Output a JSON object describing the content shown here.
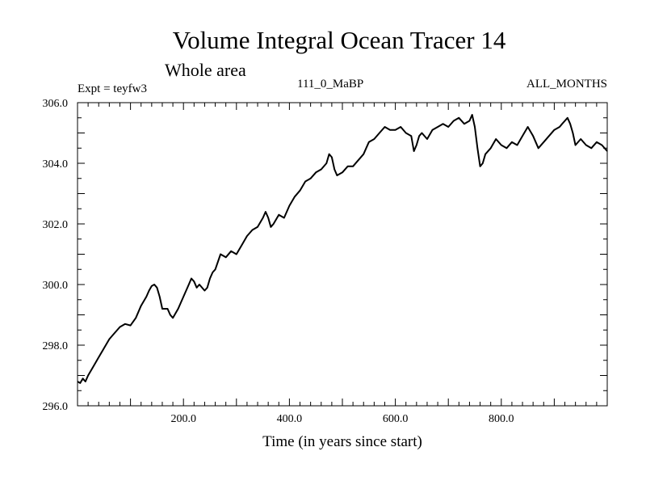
{
  "chart_data": {
    "type": "line",
    "title": "Volume Integral Ocean Tracer 14",
    "subtitle": "Whole area",
    "experiment": "Expt = teyfw3",
    "period": "111_0_MaBP",
    "months": "ALL_MONTHS",
    "xlabel": "Time (in years since start)",
    "ylabel": "",
    "xlim": [
      0,
      1000
    ],
    "ylim": [
      296.0,
      306.0
    ],
    "x_ticks": [
      200,
      400,
      600,
      800
    ],
    "x_tick_labels": [
      "200.0",
      "400.0",
      "600.0",
      "800.0"
    ],
    "y_ticks": [
      296,
      298,
      300,
      302,
      304,
      306
    ],
    "y_tick_labels": [
      "296.0",
      "298.0",
      "300.0",
      "302.0",
      "304.0",
      "306.0"
    ],
    "grid": false,
    "series": [
      {
        "name": "Tracer 14",
        "x": [
          0,
          5,
          10,
          15,
          20,
          30,
          40,
          50,
          60,
          70,
          80,
          90,
          100,
          110,
          120,
          130,
          135,
          140,
          145,
          150,
          155,
          160,
          170,
          175,
          180,
          190,
          200,
          210,
          215,
          220,
          225,
          230,
          240,
          245,
          250,
          255,
          260,
          270,
          280,
          290,
          300,
          310,
          320,
          330,
          340,
          350,
          355,
          360,
          365,
          370,
          380,
          390,
          400,
          410,
          420,
          430,
          440,
          450,
          460,
          470,
          475,
          480,
          485,
          490,
          500,
          510,
          520,
          530,
          540,
          550,
          560,
          570,
          580,
          590,
          600,
          610,
          620,
          630,
          635,
          640,
          645,
          650,
          660,
          670,
          680,
          690,
          700,
          710,
          720,
          730,
          740,
          745,
          750,
          755,
          760,
          765,
          770,
          780,
          790,
          800,
          810,
          820,
          830,
          840,
          850,
          860,
          870,
          880,
          890,
          900,
          910,
          915,
          920,
          925,
          930,
          935,
          940,
          950,
          960,
          970,
          980,
          990,
          1000
        ],
        "values": [
          296.8,
          296.75,
          296.9,
          296.8,
          297.0,
          297.3,
          297.6,
          297.9,
          298.2,
          298.4,
          298.6,
          298.7,
          298.65,
          298.9,
          299.3,
          299.6,
          299.8,
          299.95,
          300.0,
          299.9,
          299.6,
          299.2,
          299.2,
          299.0,
          298.9,
          299.2,
          299.6,
          300.0,
          300.2,
          300.1,
          299.9,
          300.0,
          299.8,
          299.9,
          300.2,
          300.4,
          300.5,
          301.0,
          300.9,
          301.1,
          301.0,
          301.3,
          301.6,
          301.8,
          301.9,
          302.2,
          302.4,
          302.2,
          301.9,
          302.0,
          302.3,
          302.2,
          302.6,
          302.9,
          303.1,
          303.4,
          303.5,
          303.7,
          303.8,
          304.0,
          304.3,
          304.2,
          303.8,
          303.6,
          303.7,
          303.9,
          303.9,
          304.1,
          304.3,
          304.7,
          304.8,
          305.0,
          305.2,
          305.1,
          305.1,
          305.2,
          305.0,
          304.9,
          304.4,
          304.6,
          304.9,
          305.0,
          304.8,
          305.1,
          305.2,
          305.3,
          305.2,
          305.4,
          305.5,
          305.3,
          305.4,
          305.6,
          305.2,
          304.5,
          303.9,
          304.0,
          304.3,
          304.5,
          304.8,
          304.6,
          304.5,
          304.7,
          304.6,
          304.9,
          305.2,
          304.9,
          304.5,
          304.7,
          304.9,
          305.1,
          305.2,
          305.3,
          305.4,
          305.5,
          305.3,
          305.0,
          304.6,
          304.8,
          304.6,
          304.5,
          304.7,
          304.6,
          304.4
        ]
      }
    ]
  }
}
